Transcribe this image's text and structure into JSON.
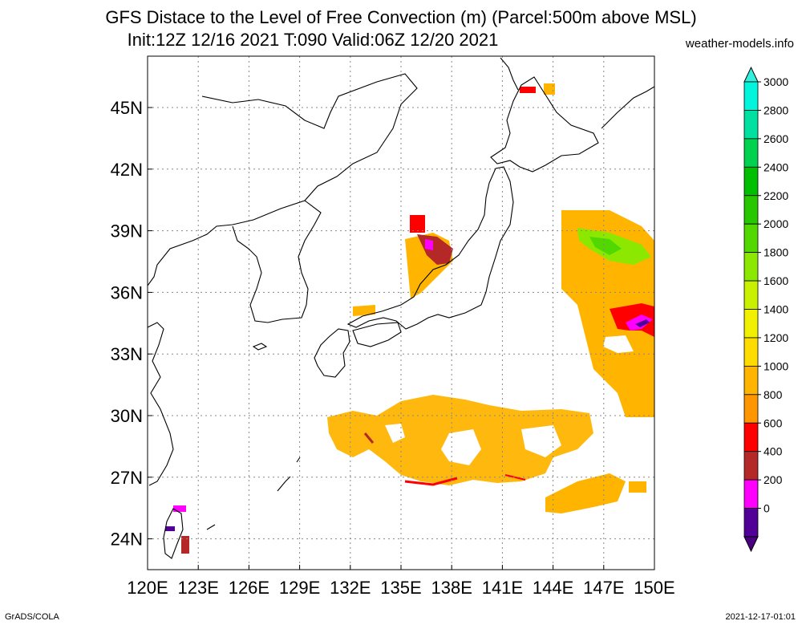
{
  "title": {
    "line1": "GFS Distace to the Level of Free Convection (m) (Parcel:500m above MSL)",
    "line2": "Init:12Z 12/16 2021 T:090 Valid:06Z 12/20 2021",
    "site": "weather-models.info"
  },
  "axes": {
    "lon_labels": [
      "120E",
      "123E",
      "126E",
      "129E",
      "132E",
      "135E",
      "138E",
      "141E",
      "144E",
      "147E",
      "150E"
    ],
    "lat_labels": [
      "45N",
      "42N",
      "39N",
      "36N",
      "33N",
      "30N",
      "27N",
      "24N"
    ],
    "lon_range": [
      120,
      150
    ],
    "lat_range": [
      22.5,
      47.5
    ],
    "grid": "dotted"
  },
  "colorbar": {
    "labels": [
      "3000",
      "2800",
      "2600",
      "2400",
      "2200",
      "2000",
      "1800",
      "1600",
      "1400",
      "1200",
      "1000",
      "800",
      "600",
      "400",
      "200",
      "0"
    ],
    "colors": [
      "#00f5dc",
      "#00e0a0",
      "#00d250",
      "#00be00",
      "#28c800",
      "#50d800",
      "#8ce800",
      "#c8f000",
      "#f0f000",
      "#ffdc00",
      "#ffb400",
      "#ff9600",
      "#ff0000",
      "#b42828",
      "#ff00ff",
      "#500096"
    ],
    "top_arrow": "#33f0dc",
    "bottom_arrow": "#4b0082"
  },
  "footer": {
    "left": "GrADS/COLA",
    "right": "2021-12-17-01:01"
  }
}
